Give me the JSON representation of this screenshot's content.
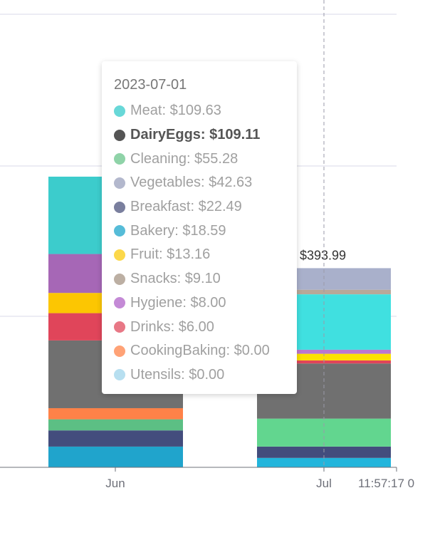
{
  "chart_data": {
    "type": "bar",
    "stacked": true,
    "x_ticks": [
      "Jun",
      "Jul",
      "11:57:17 0"
    ],
    "bars": [
      {
        "x": "2023-06",
        "segments": [
          {
            "category": "Bakery",
            "value": 41,
            "color": "#20a4cc"
          },
          {
            "category": "Breakfast",
            "value": 32,
            "color": "#434d7d"
          },
          {
            "category": "Cleaning",
            "value": 22,
            "color": "#5cbf84"
          },
          {
            "category": "CookingBaking",
            "value": 22,
            "color": "#ff8248"
          },
          {
            "category": "DairyEggs",
            "value": 134,
            "color": "#707070"
          },
          {
            "category": "Drinks",
            "value": 54,
            "color": "#e0455a"
          },
          {
            "category": "Fruit",
            "value": 40,
            "color": "#fcc602"
          },
          {
            "category": "Hygiene",
            "value": 77,
            "color": "#a667b6"
          },
          {
            "category": "Meat",
            "value": 153,
            "color": "#3ccccc"
          }
        ]
      },
      {
        "x": "2023-07-01",
        "total_label": "$393.99",
        "segments": [
          {
            "category": "Bakery",
            "value": 18.59,
            "color": "#22b5dc"
          },
          {
            "category": "Breakfast",
            "value": 22.49,
            "color": "#434d7d"
          },
          {
            "category": "Cleaning",
            "value": 55.28,
            "color": "#62d68f"
          },
          {
            "category": "CookingBaking",
            "value": 0.0,
            "color": "#ff8248"
          },
          {
            "category": "DairyEggs",
            "value": 109.11,
            "color": "#707070"
          },
          {
            "category": "Drinks",
            "value": 6.0,
            "color": "#e0455a"
          },
          {
            "category": "Fruit",
            "value": 13.16,
            "color": "#fce100"
          },
          {
            "category": "Hygiene",
            "value": 8.0,
            "color": "#bb77d0"
          },
          {
            "category": "Meat",
            "value": 109.63,
            "color": "#40e0e0"
          },
          {
            "category": "Snacks",
            "value": 9.1,
            "color": "#b8a898"
          },
          {
            "category": "Vegetables",
            "value": 42.63,
            "color": "#a9b0cb"
          }
        ]
      }
    ],
    "crosshair_x": "2023-07-01",
    "grid": true,
    "y_axis_labels_visible": false
  },
  "tooltip": {
    "date": "2023-07-01",
    "items": [
      {
        "label": "Meat: $109.63",
        "color": "#68d8d8",
        "active": false
      },
      {
        "label": "DairyEggs: $109.11",
        "color": "#555555",
        "active": true
      },
      {
        "label": "Cleaning: $55.28",
        "color": "#8fd3a8",
        "active": false
      },
      {
        "label": "Vegetables: $42.63",
        "color": "#b3b8cd",
        "active": false
      },
      {
        "label": "Breakfast: $22.49",
        "color": "#7a7f9e",
        "active": false
      },
      {
        "label": "Bakery: $18.59",
        "color": "#56bcd8",
        "active": false
      },
      {
        "label": "Fruit: $13.16",
        "color": "#fcd84a",
        "active": false
      },
      {
        "label": "Snacks: $9.10",
        "color": "#bcafa3",
        "active": false
      },
      {
        "label": "Hygiene: $8.00",
        "color": "#c48ad6",
        "active": false
      },
      {
        "label": "Drinks: $6.00",
        "color": "#e87886",
        "active": false
      },
      {
        "label": "CookingBaking: $0.00",
        "color": "#ffa276",
        "active": false
      },
      {
        "label": "Utensils: $0.00",
        "color": "#b7dff0",
        "active": false
      }
    ]
  }
}
